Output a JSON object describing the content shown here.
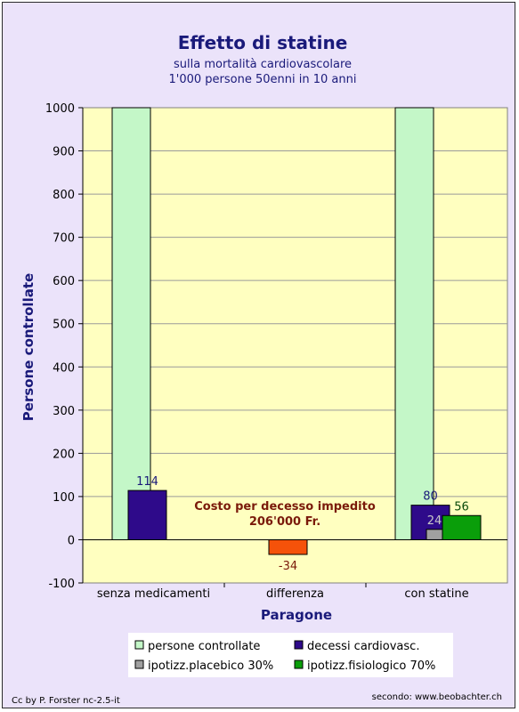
{
  "chart_data": {
    "type": "bar",
    "title": "Effetto di statine",
    "subtitle_lines": [
      "sulla mortalità cardiovascolare",
      "1'000 persone 50enni in 10 anni"
    ],
    "xlabel": "Paragone",
    "ylabel": "Persone controllate",
    "ylim": [
      -100,
      1000
    ],
    "yticks": [
      -100,
      0,
      100,
      200,
      300,
      400,
      500,
      600,
      700,
      800,
      900,
      1000
    ],
    "categories": [
      "senza medicamenti",
      "differenza",
      "con statine"
    ],
    "series": [
      {
        "name": "persone controllate",
        "color": "#c4f7c8",
        "values": [
          1000,
          null,
          1000
        ]
      },
      {
        "name": "decessi cardiovasc.",
        "color": "#2e0a8a",
        "values": [
          114,
          -34,
          80
        ]
      },
      {
        "name": "ipotizz.placebico 30%",
        "color": "#a0a0a0",
        "values": [
          null,
          null,
          24
        ]
      },
      {
        "name": "ipotizz.fisiologico 70%",
        "color": "#0a9e0a",
        "values": [
          null,
          null,
          56
        ]
      }
    ],
    "difference_color": "#f5520a",
    "data_labels": [
      {
        "category": 0,
        "series": 1,
        "text": "114",
        "color": "#1a1a7a"
      },
      {
        "category": 1,
        "series": 1,
        "text": "-34",
        "color": "#7a1a0a"
      },
      {
        "category": 2,
        "series": 1,
        "text": "80",
        "color": "#1a1a7a"
      },
      {
        "category": 2,
        "series": 2,
        "text": "24",
        "color": "#c8c8c8"
      },
      {
        "category": 2,
        "series": 3,
        "text": "56",
        "color": "#0a4a0a"
      }
    ],
    "annotation_lines": [
      "Costo per decesso impedito",
      "206'000 Fr."
    ],
    "legend_position": "bottom",
    "plot_bg": "#ffffc0",
    "grid": true
  },
  "footer": {
    "left": "Cc by P. Forster nc-2.5-it",
    "right": "secondo: www.beobachter.ch"
  }
}
